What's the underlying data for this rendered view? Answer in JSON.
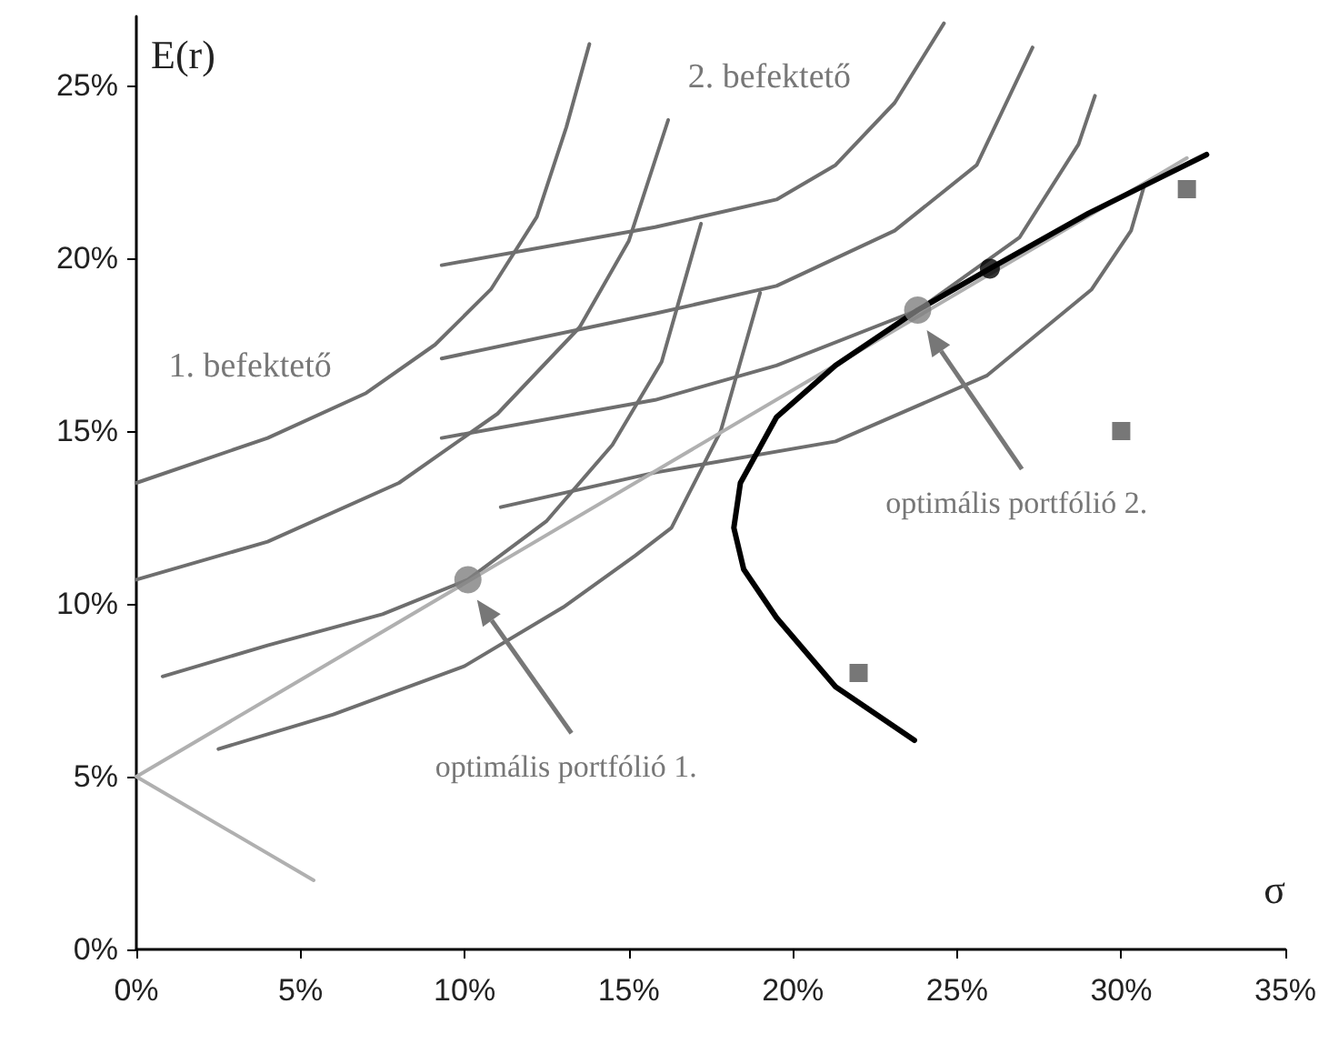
{
  "chart_data": {
    "type": "line",
    "xlabel": "σ",
    "ylabel": "E(r)",
    "xlim": [
      0,
      35
    ],
    "xticks": [
      {
        "value": 0,
        "label": "0%"
      },
      {
        "value": 5,
        "label": "5%"
      },
      {
        "value": 10,
        "label": "10%"
      },
      {
        "value": 15,
        "label": "15%"
      },
      {
        "value": 20,
        "label": "20%"
      },
      {
        "value": 25,
        "label": "25%"
      },
      {
        "value": 30,
        "label": "30%"
      },
      {
        "value": 35,
        "label": "35%"
      }
    ],
    "ylim": [
      0,
      27
    ],
    "yticks": [
      {
        "value": 0,
        "label": "0%"
      },
      {
        "value": 5,
        "label": "5%"
      },
      {
        "value": 10,
        "label": "10%"
      },
      {
        "value": 15,
        "label": "15%"
      },
      {
        "value": 20,
        "label": "20%"
      },
      {
        "value": 25,
        "label": "25%"
      }
    ],
    "grid": false,
    "marker": "none",
    "line_style": "solid",
    "series": [
      {
        "color": "#6e6e6e",
        "x": [
          0,
          4,
          7,
          9.1,
          10.8,
          12.2,
          13.1,
          13.8
        ],
        "values": [
          13.5,
          14.8,
          16.1,
          17.5,
          19.1,
          21.2,
          23.8,
          26.2
        ]
      },
      {
        "color": "#6e6e6e",
        "x": [
          0,
          4,
          8,
          11,
          13.5,
          15,
          16.2
        ],
        "values": [
          10.7,
          11.8,
          13.5,
          15.5,
          18,
          20.5,
          24
        ]
      },
      {
        "color": "#6e6e6e",
        "x": [
          0.8,
          4,
          7.5,
          10.1,
          12.5,
          14.5,
          16,
          17.2
        ],
        "values": [
          7.9,
          8.8,
          9.7,
          10.7,
          12.4,
          14.6,
          17,
          21
        ]
      },
      {
        "color": "#6e6e6e",
        "x": [
          2.5,
          6,
          10,
          13,
          15.2,
          16.3,
          17.8,
          19
        ],
        "values": [
          5.8,
          6.8,
          8.2,
          9.9,
          11.4,
          12.2,
          15,
          19
        ]
      },
      {
        "color": "#6e6e6e",
        "x": [
          9.3,
          15.8,
          19.5,
          21.3,
          23.1,
          24.6
        ],
        "values": [
          19.8,
          20.9,
          21.7,
          22.7,
          24.5,
          26.8
        ]
      },
      {
        "color": "#6e6e6e",
        "x": [
          9.3,
          15.8,
          19.5,
          23.1,
          25.6,
          27.3
        ],
        "values": [
          17.1,
          18.4,
          19.2,
          20.8,
          22.7,
          26.1
        ]
      },
      {
        "color": "#6e6e6e",
        "x": [
          9.3,
          15.8,
          19.5,
          23.8,
          26.9,
          28.7,
          29.2
        ],
        "values": [
          14.8,
          15.9,
          16.9,
          18.5,
          20.6,
          23.3,
          24.7
        ]
      },
      {
        "color": "#6e6e6e",
        "x": [
          11.1,
          15.8,
          21.3,
          25.9,
          29.1,
          30.3,
          30.7
        ],
        "values": [
          12.8,
          13.8,
          14.7,
          16.6,
          19.1,
          20.8,
          22.1
        ]
      },
      {
        "color": "#b0b0b0",
        "x": [
          5.4,
          0,
          32
        ],
        "values": [
          2,
          5,
          22.9
        ]
      },
      {
        "color": "#000000",
        "x": [
          23.7,
          21.3,
          19.5,
          18.5,
          18.2,
          18.4,
          19.5,
          21.3,
          23.8,
          26,
          29,
          32.6
        ],
        "values": [
          6.05,
          7.6,
          9.6,
          11,
          12.2,
          13.5,
          15.4,
          16.9,
          18.5,
          19.7,
          21.3,
          23
        ]
      },
      {
        "type": "scatter",
        "marker": "circle",
        "color": "#808080",
        "x": [
          10.1,
          23.8
        ],
        "values": [
          10.7,
          18.5
        ]
      },
      {
        "type": "scatter",
        "marker": "circle",
        "color": "#000000",
        "x": [
          26
        ],
        "values": [
          19.7
        ]
      },
      {
        "type": "scatter",
        "marker": "square",
        "color": "#555555",
        "x": [
          22,
          30,
          32
        ],
        "values": [
          8,
          15,
          22
        ]
      }
    ],
    "annotations": [
      "1. befektető",
      "2. befektető",
      "optimális portfólió 1.",
      "optimális portfólió 2."
    ]
  }
}
